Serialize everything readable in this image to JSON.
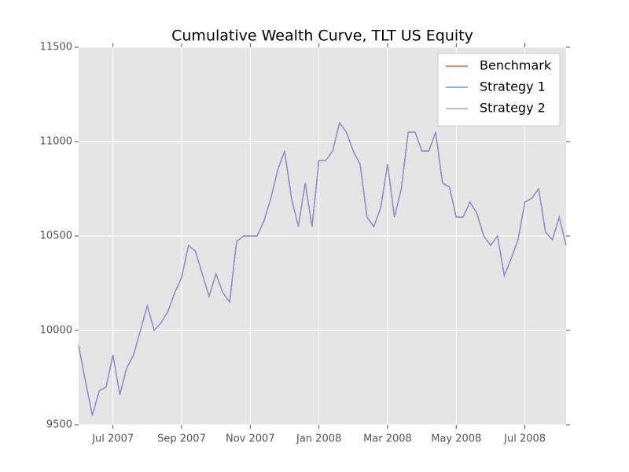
{
  "chart_data": {
    "type": "line",
    "title": "Cumulative Wealth Curve, TLT US Equity",
    "categories": [
      null,
      null,
      null,
      null,
      null,
      "Jul 2007",
      null,
      null,
      null,
      null,
      null,
      null,
      null,
      null,
      null,
      "Sep 2007",
      null,
      null,
      null,
      null,
      null,
      null,
      null,
      null,
      null,
      "Nov 2007",
      null,
      null,
      null,
      null,
      null,
      null,
      null,
      null,
      null,
      "Jan 2008",
      null,
      null,
      null,
      null,
      null,
      null,
      null,
      null,
      null,
      "Mar 2008",
      null,
      null,
      null,
      null,
      null,
      null,
      null,
      null,
      null,
      "May 2008",
      null,
      null,
      null,
      null,
      null,
      null,
      null,
      null,
      null,
      "Jul 2008",
      null,
      null,
      null,
      null,
      null,
      null
    ],
    "series": [
      {
        "name": "Benchmark",
        "color": "#E24A33",
        "values": [
          9920,
          9730,
          9550,
          9680,
          9700,
          9870,
          9660,
          9800,
          9870,
          10000,
          10130,
          10000,
          10040,
          10100,
          10200,
          10280,
          10450,
          10420,
          10300,
          10180,
          10300,
          10200,
          10150,
          10470,
          10500,
          10500,
          10500,
          10580,
          10700,
          10850,
          10950,
          10700,
          10550,
          10780,
          10550,
          10900,
          10900,
          10950,
          11100,
          11050,
          10950,
          10880,
          10600,
          10550,
          10650,
          10880,
          10600,
          10750,
          11050,
          11050,
          10950,
          10950,
          11050,
          10780,
          10760,
          10600,
          10600,
          10680,
          10620,
          10500,
          10450,
          10500,
          10290,
          10380,
          10480,
          10680,
          10700,
          10750,
          10520,
          10480,
          10600,
          10450
        ]
      },
      {
        "name": "Strategy 1",
        "color": "#348ABD",
        "values": [
          9920,
          9730,
          9550,
          9680,
          9700,
          9870,
          9660,
          9800,
          9870,
          10000,
          10130,
          10000,
          10040,
          10100,
          10200,
          10280,
          10450,
          10420,
          10300,
          10180,
          10300,
          10200,
          10150,
          10470,
          10500,
          10500,
          10500,
          10580,
          10700,
          10850,
          10950,
          10700,
          10550,
          10780,
          10550,
          10900,
          10900,
          10950,
          11100,
          11050,
          10950,
          10880,
          10600,
          10550,
          10650,
          10880,
          10600,
          10750,
          11050,
          11050,
          10950,
          10950,
          11050,
          10780,
          10760,
          10600,
          10600,
          10680,
          10620,
          10500,
          10450,
          10500,
          10290,
          10380,
          10480,
          10680,
          10700,
          10750,
          10520,
          10480,
          10600,
          10450
        ]
      },
      {
        "name": "Strategy 2",
        "color": "#988ED5",
        "values": [
          9920,
          9730,
          9550,
          9680,
          9700,
          9870,
          9660,
          9800,
          9870,
          10000,
          10130,
          10000,
          10040,
          10100,
          10200,
          10280,
          10450,
          10420,
          10300,
          10180,
          10300,
          10200,
          10150,
          10470,
          10500,
          10500,
          10500,
          10580,
          10700,
          10850,
          10950,
          10700,
          10550,
          10780,
          10550,
          10900,
          10900,
          10950,
          11100,
          11050,
          10950,
          10880,
          10600,
          10550,
          10650,
          10880,
          10600,
          10750,
          11050,
          11050,
          10950,
          10950,
          11050,
          10780,
          10760,
          10600,
          10600,
          10680,
          10620,
          10500,
          10450,
          10500,
          10290,
          10380,
          10480,
          10680,
          10700,
          10750,
          10520,
          10480,
          10600,
          10450
        ]
      }
    ],
    "ylim": [
      9500,
      11500
    ],
    "yticks": [
      9500,
      10000,
      10500,
      11000,
      11500
    ],
    "grid": true,
    "legend": "upper right"
  }
}
